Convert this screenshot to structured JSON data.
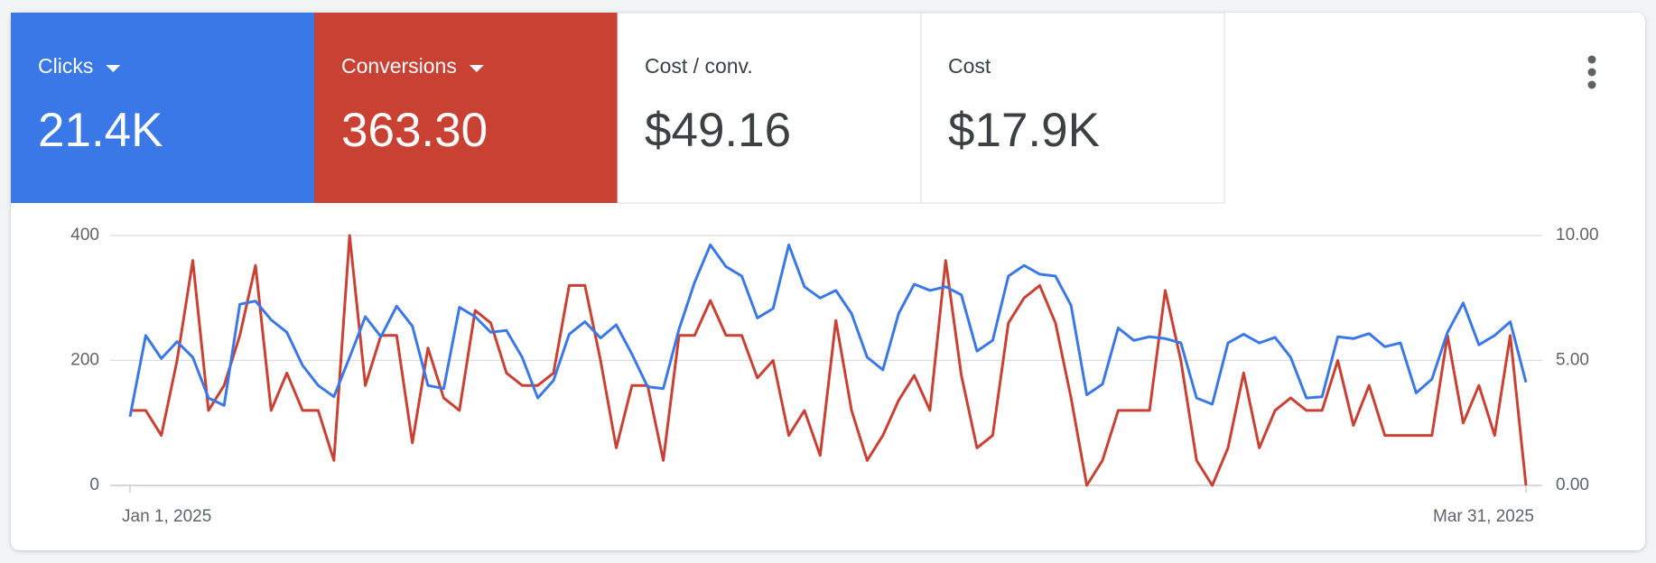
{
  "cards": [
    {
      "label": "Clicks",
      "value": "21.4K",
      "color": "#3b78e7"
    },
    {
      "label": "Conversions",
      "value": "363.30",
      "color": "#c94133"
    },
    {
      "label": "Cost / conv.",
      "value": "$49.16"
    },
    {
      "label": "Cost",
      "value": "$17.9K"
    }
  ],
  "chart_data": {
    "type": "line",
    "categories": [
      "Jan 1, 2025",
      null,
      null,
      null,
      null,
      null,
      null,
      null,
      null,
      null,
      null,
      null,
      null,
      null,
      null,
      null,
      null,
      null,
      null,
      null,
      null,
      null,
      null,
      null,
      null,
      null,
      null,
      null,
      null,
      null,
      null,
      null,
      null,
      null,
      null,
      null,
      null,
      null,
      null,
      null,
      null,
      null,
      null,
      null,
      null,
      null,
      null,
      null,
      null,
      null,
      null,
      null,
      null,
      null,
      null,
      null,
      null,
      null,
      null,
      null,
      null,
      null,
      null,
      null,
      null,
      null,
      null,
      null,
      null,
      null,
      null,
      null,
      null,
      null,
      null,
      null,
      null,
      null,
      null,
      null,
      null,
      null,
      null,
      null,
      null,
      null,
      null,
      null,
      null,
      "Mar 31, 2025"
    ],
    "series": [
      {
        "name": "Clicks",
        "color": "#3b78e7",
        "values": [
          110,
          240,
          203,
          230,
          205,
          140,
          128,
          290,
          295,
          265,
          245,
          192,
          160,
          142,
          205,
          270,
          238,
          287,
          255,
          160,
          155,
          285,
          270,
          245,
          248,
          205,
          140,
          168,
          242,
          262,
          236,
          257,
          210,
          158,
          155,
          250,
          325,
          385,
          350,
          335,
          268,
          283,
          385,
          318,
          300,
          312,
          275,
          205,
          185,
          275,
          322,
          312,
          318,
          305,
          215,
          232,
          335,
          352,
          338,
          335,
          288,
          145,
          162,
          252,
          232,
          238,
          235,
          228,
          140,
          130,
          228,
          242,
          228,
          237,
          205,
          140,
          142,
          238,
          235,
          243,
          222,
          228,
          148,
          170,
          245,
          292,
          225,
          240,
          262,
          165
        ]
      },
      {
        "name": "Conversions",
        "color": "#c94133",
        "axis": "y2",
        "values": [
          3.0,
          3.0,
          2.0,
          5.0,
          9.0,
          3.0,
          4.0,
          6.0,
          8.8,
          3.0,
          4.5,
          3.0,
          3.0,
          1.0,
          10.0,
          4.0,
          6.0,
          6.0,
          1.7,
          5.5,
          3.5,
          3.0,
          7.0,
          6.5,
          4.5,
          4.0,
          4.0,
          4.5,
          8.0,
          8.0,
          5.0,
          1.5,
          4.0,
          4.0,
          1.0,
          6.0,
          6.0,
          7.4,
          6.0,
          6.0,
          4.3,
          5.0,
          2.0,
          3.0,
          1.2,
          6.6,
          3.0,
          1.0,
          2.0,
          3.4,
          4.4,
          3.0,
          9.0,
          4.4,
          1.5,
          2.0,
          6.5,
          7.5,
          8.0,
          6.5,
          3.5,
          0,
          1.0,
          3.0,
          3.0,
          3.0,
          7.8,
          5.0,
          1.0,
          0,
          1.5,
          4.5,
          1.5,
          3.0,
          3.5,
          3.0,
          3.0,
          5.0,
          2.4,
          4.0,
          2.0,
          2.0,
          2.0,
          2.0,
          6.0,
          2.5,
          4.0,
          2.0,
          6.0,
          0
        ]
      }
    ],
    "ylim": [
      0,
      400
    ],
    "yticks": [
      0,
      200,
      400
    ],
    "y2lim": [
      0,
      10
    ],
    "y2ticks": [
      {
        "value": 0,
        "label": "0.00"
      },
      {
        "value": 5,
        "label": "5.00"
      },
      {
        "value": 10,
        "label": "10.00"
      }
    ],
    "grid": true
  }
}
